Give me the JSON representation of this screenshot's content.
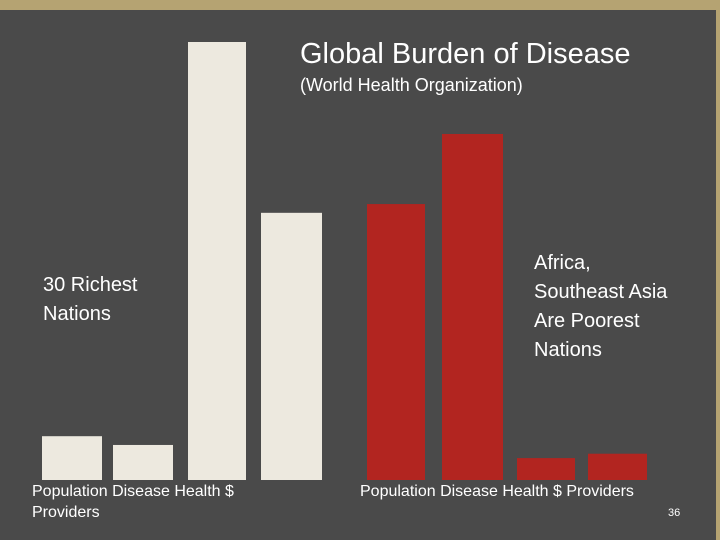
{
  "slide": {
    "title": "Global Burden of Disease",
    "subtitle": "(World Health Organization)",
    "slide_number": "36"
  },
  "chart_data": {
    "type": "bar",
    "title": "Global Burden of Disease",
    "subtitle": "(World Health Organization)",
    "groups": [
      {
        "name": "30 Richest\nNations",
        "color": "#ede9df",
        "categories": [
          "Population",
          "Disease",
          "Health $",
          "Providers"
        ],
        "values": [
          10,
          8,
          100,
          61
        ]
      },
      {
        "name": "Africa,\nSoutheast Asia\nAre Poorest\nNations",
        "color": "#b22520",
        "categories": [
          "Population",
          "Disease",
          "Health $",
          "Providers"
        ],
        "values": [
          63,
          79,
          5,
          6
        ]
      }
    ],
    "axis_labels": {
      "left_line1": "Population Disease   Health $",
      "left_line2": "Providers",
      "right_line1": "Population Disease   Health $  Providers"
    },
    "ylim": [
      0,
      100
    ],
    "grid": false
  }
}
